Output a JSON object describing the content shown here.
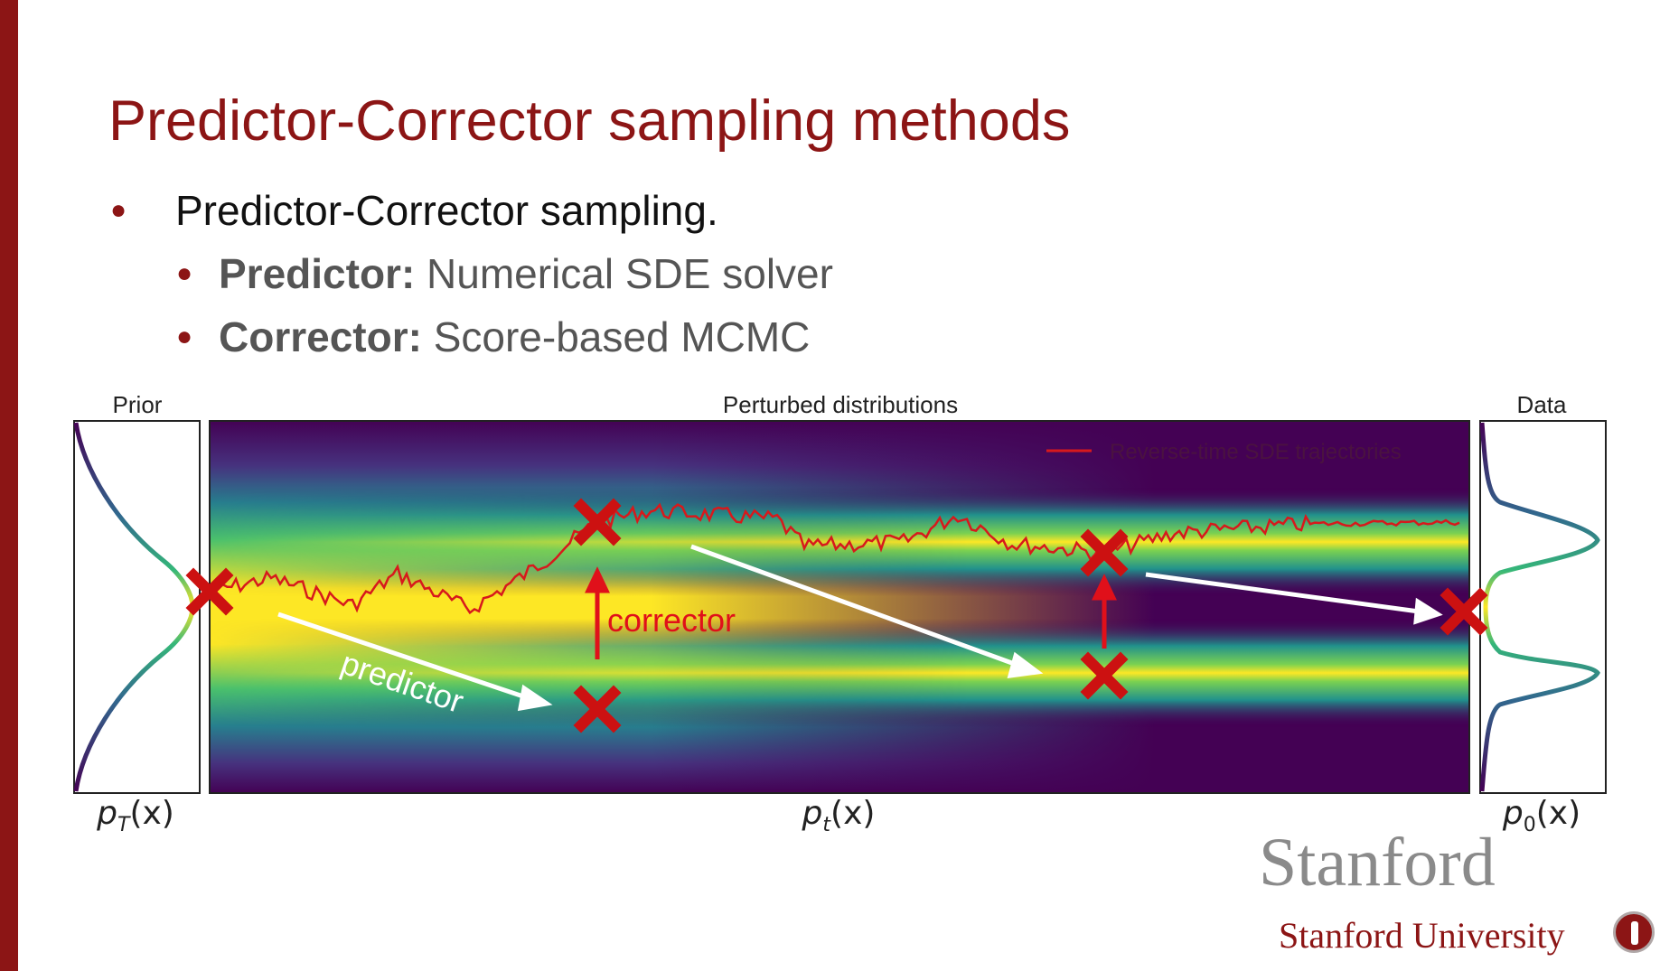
{
  "slide": {
    "title": "Predictor-Corrector sampling methods",
    "bullets": [
      {
        "text": "Predictor-Corrector sampling."
      },
      {
        "bold": "Predictor:",
        "text": " Numerical SDE solver"
      },
      {
        "bold": "Corrector:",
        "text": " Score-based MCMC"
      }
    ]
  },
  "figure": {
    "prior_label": "Prior",
    "center_label": "Perturbed distributions",
    "data_label": "Data",
    "legend_label": "Reverse-time SDE trajectories",
    "predictor_label": "predictor",
    "corrector_label": "corrector",
    "math_prior": {
      "p": "p",
      "sub": "T",
      "arg": "(x)"
    },
    "math_center": {
      "p": "p",
      "sub": "t",
      "arg": "(x)"
    },
    "math_data": {
      "p": "p",
      "sub": "0",
      "arg": "(x)"
    },
    "colors": {
      "trajectory": "#d7191c",
      "marker": "#cc1111",
      "arrow_white": "#ffffff",
      "arrow_red": "#e0101a"
    }
  },
  "footer": {
    "logo": "Stanford",
    "university": "Stanford University"
  }
}
